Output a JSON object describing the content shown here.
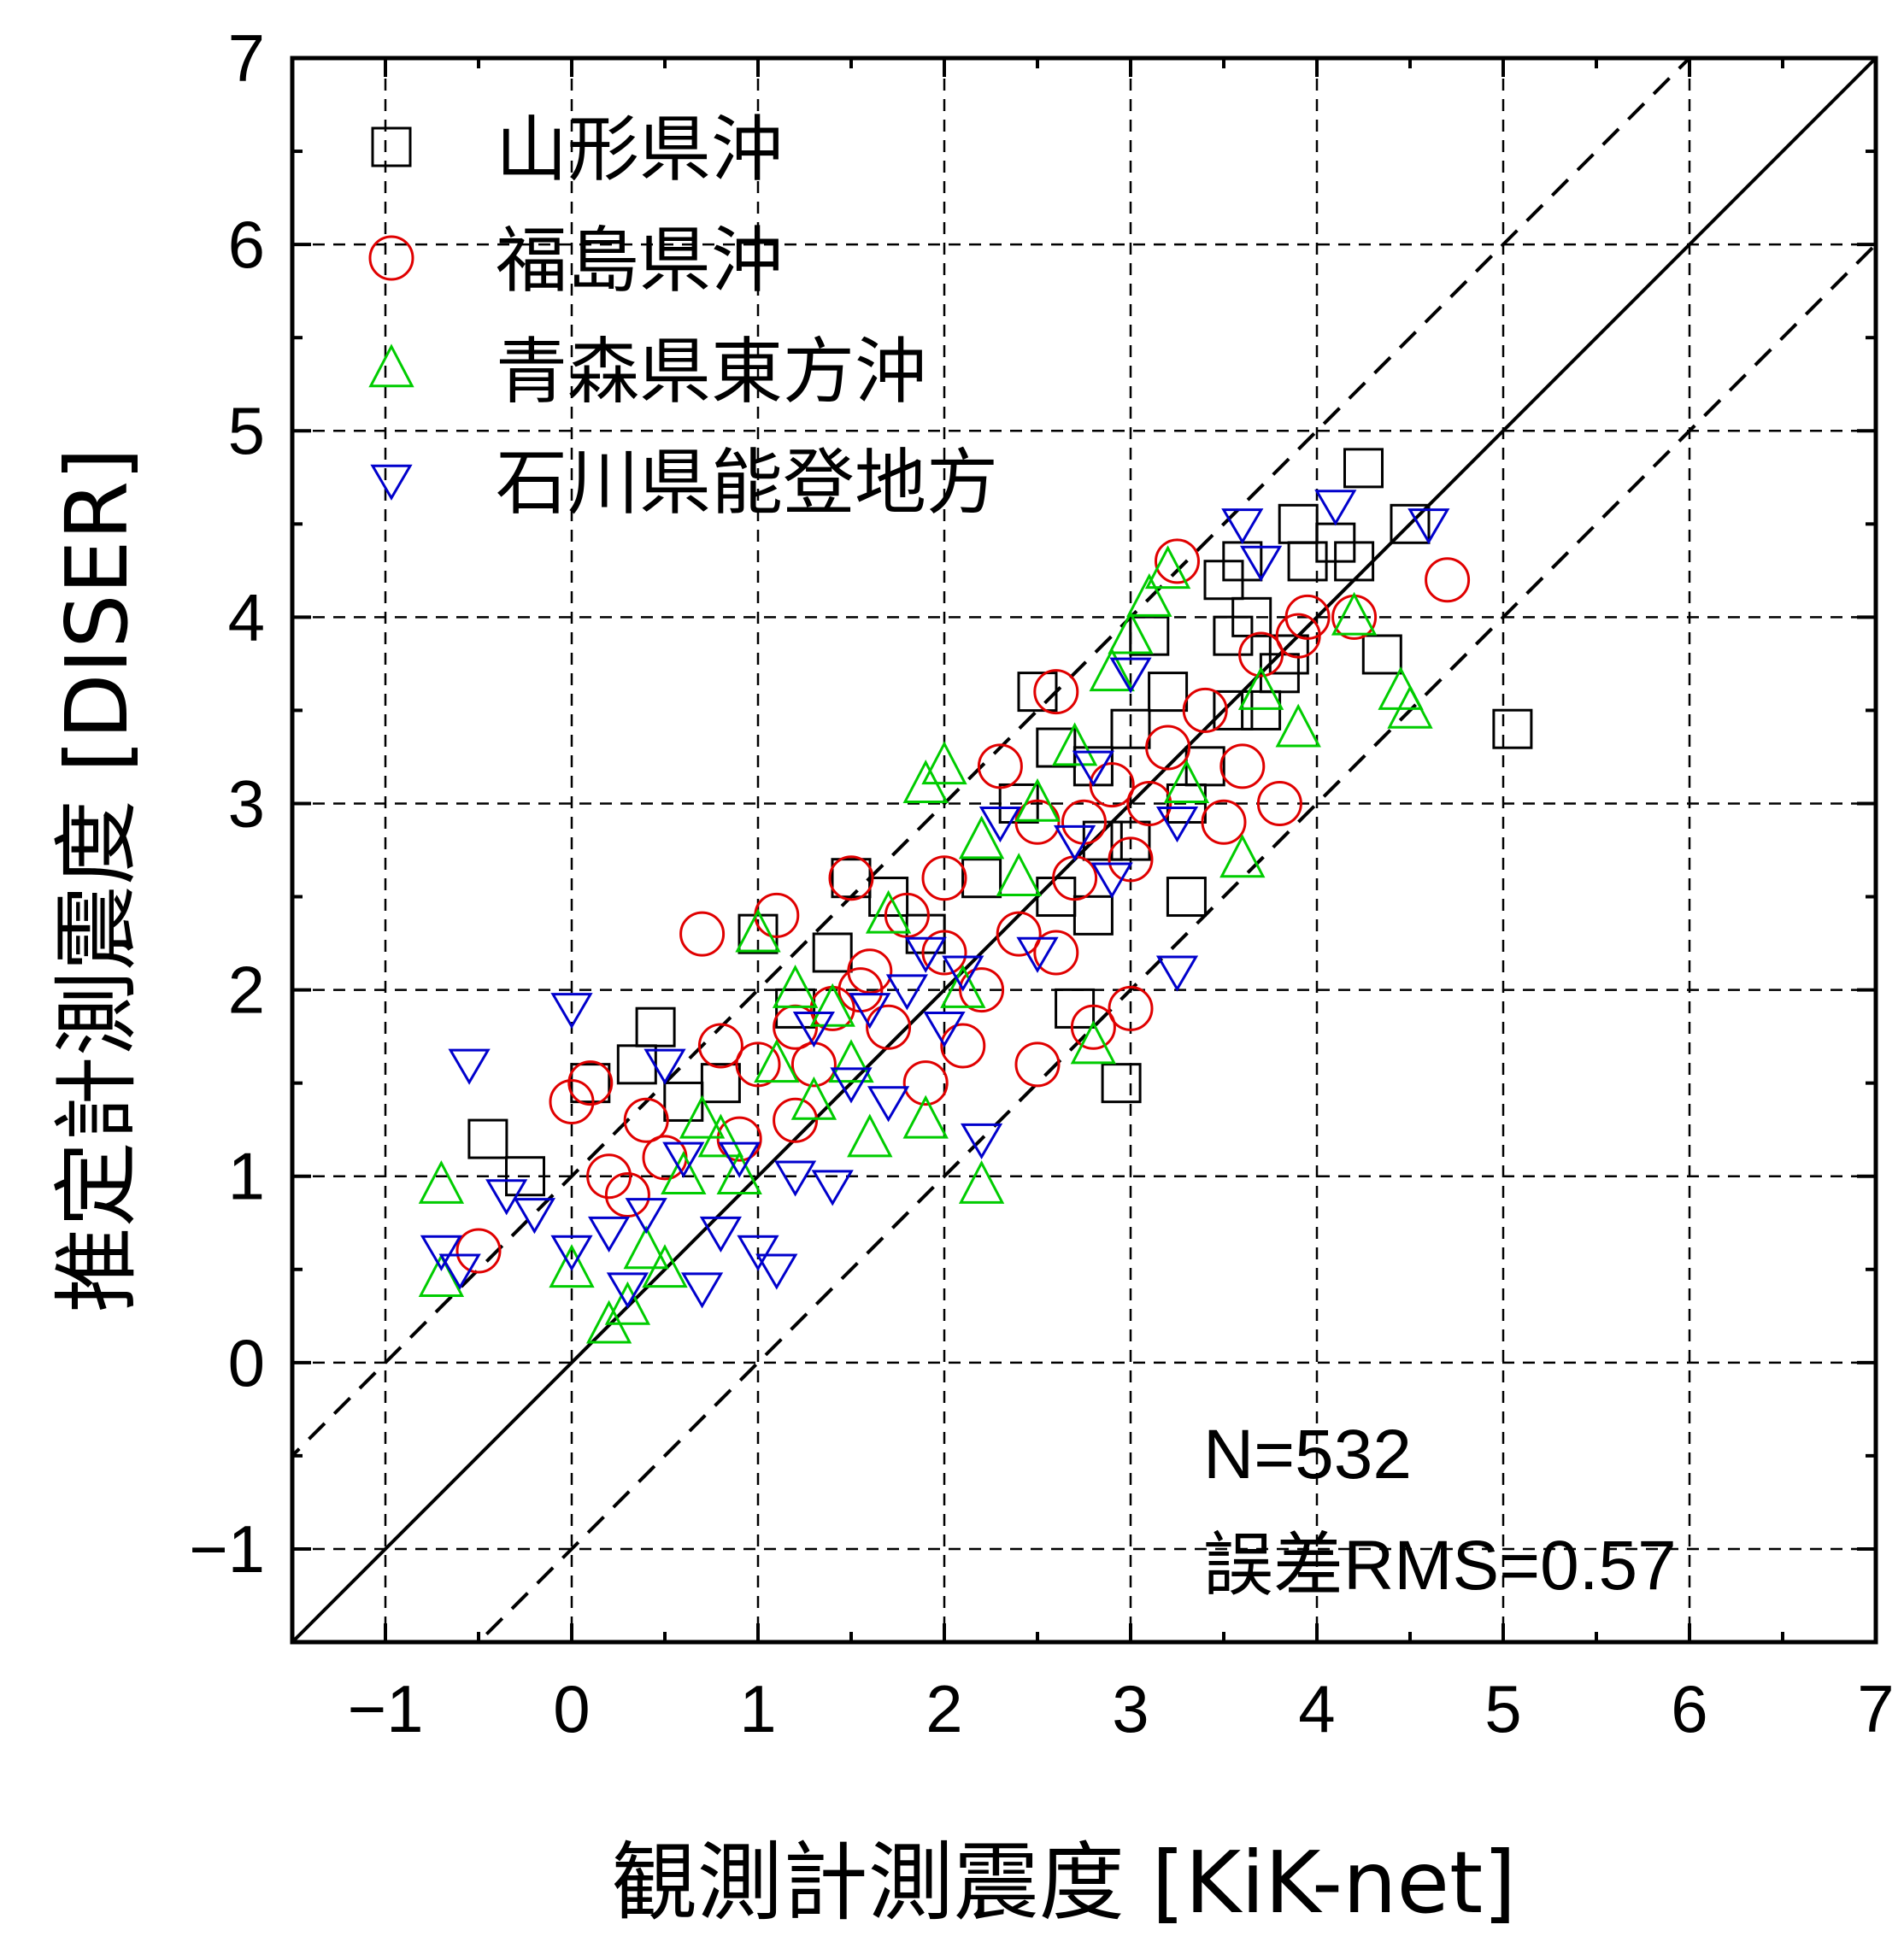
{
  "chart_data": {
    "type": "scatter",
    "xlabel": "観測計測震度 [KiK-net]",
    "ylabel": "推定計測震度 [DISER]",
    "xlim": [
      -1.5,
      7
    ],
    "ylim": [
      -1.5,
      7
    ],
    "xticks": [
      "−1",
      "0",
      "1",
      "2",
      "3",
      "4",
      "5",
      "6",
      "7"
    ],
    "yticks": [
      "−1",
      "0",
      "1",
      "2",
      "3",
      "4",
      "5",
      "6",
      "7"
    ],
    "grid": true,
    "legend_position": "top-left",
    "reference_lines": [
      {
        "style": "solid",
        "slope": 1,
        "intercept": 0
      },
      {
        "style": "dashed",
        "slope": 1,
        "intercept": 1
      },
      {
        "style": "dashed",
        "slope": 1,
        "intercept": -1
      }
    ],
    "annotations": {
      "n": "N=532",
      "rms": "誤差RMS=0.57"
    },
    "series": [
      {
        "name": "山形県沖",
        "marker": "square",
        "color": "#000000",
        "points": [
          [
            -0.45,
            1.2
          ],
          [
            -0.25,
            1.0
          ],
          [
            0.1,
            1.5
          ],
          [
            0.45,
            1.8
          ],
          [
            0.35,
            1.6
          ],
          [
            1.0,
            2.3
          ],
          [
            1.5,
            2.6
          ],
          [
            1.7,
            2.5
          ],
          [
            1.9,
            2.3
          ],
          [
            2.2,
            2.6
          ],
          [
            2.6,
            2.5
          ],
          [
            2.8,
            2.4
          ],
          [
            2.95,
            1.5
          ],
          [
            2.7,
            1.9
          ],
          [
            2.6,
            3.3
          ],
          [
            2.8,
            3.2
          ],
          [
            3.0,
            3.4
          ],
          [
            3.3,
            3.0
          ],
          [
            3.55,
            3.5
          ],
          [
            3.65,
            4.0
          ],
          [
            3.6,
            4.3
          ],
          [
            3.8,
            3.7
          ],
          [
            3.95,
            4.3
          ],
          [
            4.1,
            4.4
          ],
          [
            4.2,
            4.3
          ],
          [
            4.25,
            4.8
          ],
          [
            4.5,
            4.5
          ],
          [
            4.35,
            3.8
          ],
          [
            3.1,
            3.9
          ],
          [
            3.4,
            3.2
          ],
          [
            3.3,
            2.5
          ],
          [
            2.4,
            3.0
          ],
          [
            3.7,
            3.5
          ],
          [
            3.85,
            3.8
          ],
          [
            3.5,
            4.2
          ],
          [
            5.05,
            3.4
          ],
          [
            3.0,
            2.8
          ],
          [
            1.2,
            1.9
          ],
          [
            0.8,
            1.5
          ],
          [
            1.4,
            2.2
          ],
          [
            2.5,
            3.6
          ],
          [
            3.9,
            4.5
          ],
          [
            3.2,
            3.6
          ],
          [
            2.85,
            2.8
          ],
          [
            0.6,
            1.4
          ],
          [
            3.55,
            3.9
          ]
        ]
      },
      {
        "name": "福島県沖",
        "marker": "circle",
        "color": "#e00000",
        "points": [
          [
            -0.5,
            0.6
          ],
          [
            0.0,
            1.4
          ],
          [
            0.1,
            1.5
          ],
          [
            0.2,
            1.0
          ],
          [
            0.4,
            1.3
          ],
          [
            0.7,
            2.3
          ],
          [
            1.0,
            1.6
          ],
          [
            1.2,
            1.8
          ],
          [
            1.4,
            1.9
          ],
          [
            1.6,
            2.1
          ],
          [
            1.8,
            2.4
          ],
          [
            2.0,
            2.2
          ],
          [
            2.2,
            2.0
          ],
          [
            2.5,
            1.6
          ],
          [
            2.8,
            1.8
          ],
          [
            3.0,
            1.9
          ],
          [
            2.5,
            2.9
          ],
          [
            2.7,
            2.6
          ],
          [
            2.9,
            3.1
          ],
          [
            3.2,
            3.3
          ],
          [
            3.5,
            2.9
          ],
          [
            3.8,
            3.0
          ],
          [
            3.6,
            3.2
          ],
          [
            3.9,
            3.9
          ],
          [
            4.2,
            4.0
          ],
          [
            4.7,
            4.2
          ],
          [
            3.25,
            4.3
          ],
          [
            2.6,
            3.6
          ],
          [
            2.3,
            3.2
          ],
          [
            1.5,
            2.6
          ],
          [
            1.1,
            2.4
          ],
          [
            1.3,
            1.6
          ],
          [
            0.9,
            1.2
          ],
          [
            1.7,
            1.8
          ],
          [
            2.1,
            1.7
          ],
          [
            2.4,
            2.3
          ],
          [
            3.0,
            2.7
          ],
          [
            3.4,
            3.5
          ],
          [
            3.7,
            3.8
          ],
          [
            3.95,
            4.0
          ],
          [
            0.3,
            0.9
          ],
          [
            0.5,
            1.1
          ],
          [
            1.9,
            1.5
          ],
          [
            2.6,
            2.2
          ],
          [
            2.75,
            2.9
          ],
          [
            1.2,
            1.3
          ],
          [
            2.0,
            2.6
          ],
          [
            3.1,
            3.0
          ],
          [
            0.8,
            1.7
          ],
          [
            1.55,
            2.0
          ]
        ]
      },
      {
        "name": "青森県東方沖",
        "marker": "triangle-up",
        "color": "#00cc00",
        "points": [
          [
            -0.7,
            0.95
          ],
          [
            -0.7,
            0.45
          ],
          [
            0.0,
            0.5
          ],
          [
            0.2,
            0.2
          ],
          [
            0.3,
            0.3
          ],
          [
            0.4,
            0.6
          ],
          [
            0.6,
            1.0
          ],
          [
            0.7,
            1.3
          ],
          [
            0.9,
            1.0
          ],
          [
            1.1,
            1.6
          ],
          [
            1.2,
            2.0
          ],
          [
            1.0,
            2.3
          ],
          [
            1.4,
            1.9
          ],
          [
            1.6,
            1.2
          ],
          [
            1.7,
            2.4
          ],
          [
            1.9,
            1.3
          ],
          [
            2.2,
            0.95
          ],
          [
            1.9,
            3.1
          ],
          [
            2.0,
            3.2
          ],
          [
            2.2,
            2.8
          ],
          [
            2.4,
            2.6
          ],
          [
            2.5,
            3.0
          ],
          [
            2.7,
            3.3
          ],
          [
            2.9,
            3.7
          ],
          [
            3.1,
            4.1
          ],
          [
            3.2,
            4.25
          ],
          [
            3.0,
            3.9
          ],
          [
            3.3,
            3.1
          ],
          [
            3.7,
            3.6
          ],
          [
            3.9,
            3.4
          ],
          [
            3.6,
            2.7
          ],
          [
            4.2,
            4.0
          ],
          [
            4.45,
            3.6
          ],
          [
            4.5,
            3.5
          ],
          [
            2.8,
            1.7
          ],
          [
            0.5,
            0.5
          ],
          [
            1.3,
            1.4
          ],
          [
            0.8,
            1.2
          ],
          [
            1.5,
            1.6
          ],
          [
            2.1,
            2.0
          ]
        ]
      },
      {
        "name": "石川県能登地方",
        "marker": "triangle-down",
        "color": "#0000cc",
        "points": [
          [
            -0.7,
            0.6
          ],
          [
            -0.6,
            0.5
          ],
          [
            -0.55,
            1.6
          ],
          [
            -0.35,
            0.9
          ],
          [
            -0.2,
            0.8
          ],
          [
            0.0,
            1.9
          ],
          [
            0.0,
            0.6
          ],
          [
            0.2,
            0.7
          ],
          [
            0.4,
            0.8
          ],
          [
            0.5,
            1.6
          ],
          [
            0.6,
            1.1
          ],
          [
            0.8,
            0.7
          ],
          [
            0.9,
            1.1
          ],
          [
            1.0,
            0.6
          ],
          [
            1.2,
            1.0
          ],
          [
            1.3,
            1.8
          ],
          [
            1.5,
            1.5
          ],
          [
            1.6,
            1.9
          ],
          [
            1.8,
            2.0
          ],
          [
            2.1,
            2.1
          ],
          [
            2.2,
            1.2
          ],
          [
            2.0,
            1.8
          ],
          [
            2.3,
            2.9
          ],
          [
            2.5,
            2.2
          ],
          [
            2.7,
            2.8
          ],
          [
            2.8,
            3.2
          ],
          [
            3.0,
            3.7
          ],
          [
            3.25,
            2.9
          ],
          [
            3.25,
            2.1
          ],
          [
            3.6,
            4.5
          ],
          [
            3.7,
            4.3
          ],
          [
            4.1,
            4.6
          ],
          [
            4.6,
            4.5
          ],
          [
            1.1,
            0.5
          ],
          [
            0.3,
            0.4
          ],
          [
            0.7,
            0.4
          ],
          [
            1.7,
            1.4
          ],
          [
            1.9,
            2.2
          ],
          [
            2.9,
            2.6
          ],
          [
            1.4,
            0.95
          ]
        ]
      }
    ]
  }
}
